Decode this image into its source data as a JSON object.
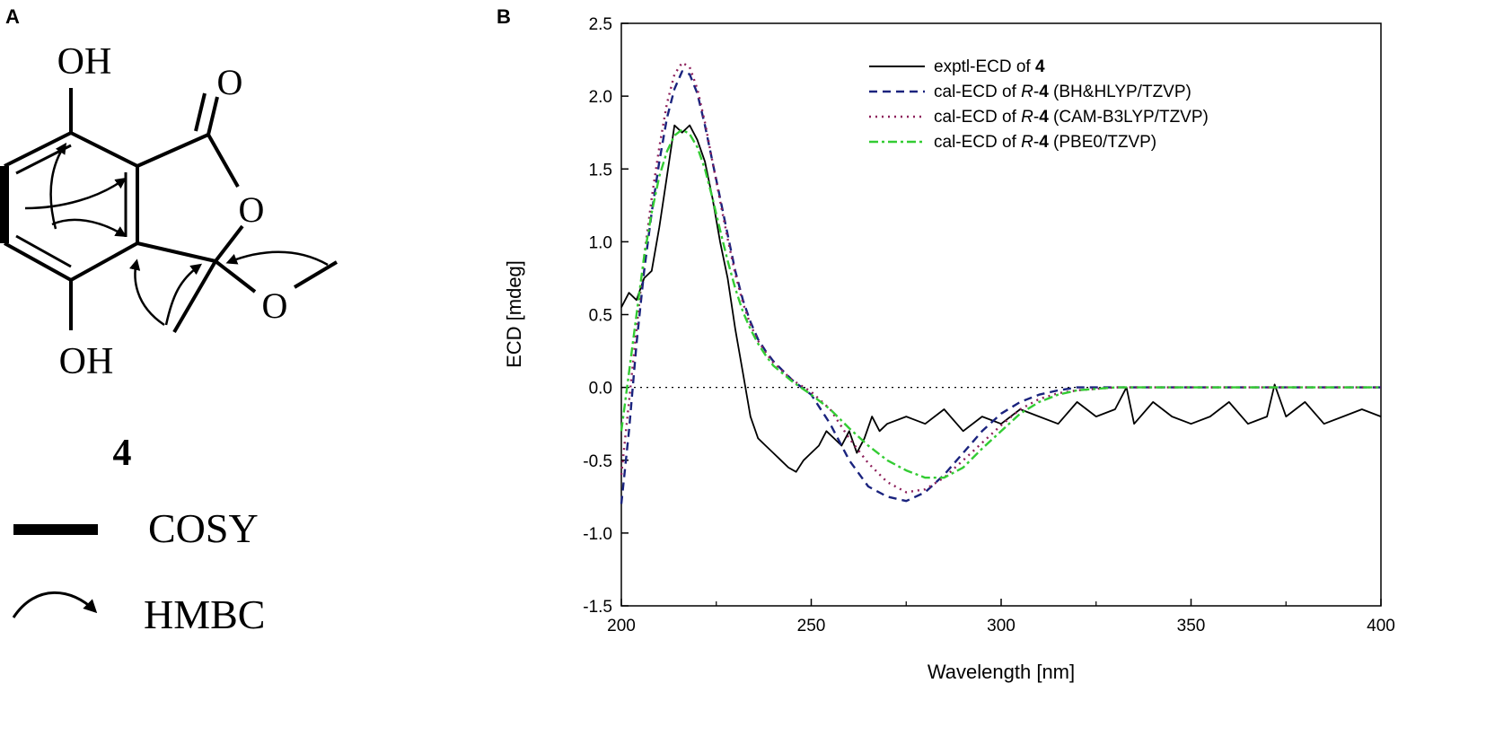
{
  "panels": {
    "a_label": "A",
    "b_label": "B"
  },
  "structure": {
    "oh_top": "OH",
    "oh_bottom": "OH",
    "o_carbonyl": "O",
    "o_ring": "O",
    "o_methoxy": "O",
    "compound_number": "4",
    "legend_cosy": "COSY",
    "legend_hmbc": "HMBC"
  },
  "chart_data": {
    "type": "line",
    "xlabel": "Wavelength [nm]",
    "ylabel": "ECD [mdeg]",
    "xlim": [
      200,
      400
    ],
    "ylim": [
      -1.5,
      2.5
    ],
    "xticks": [
      200,
      250,
      300,
      350,
      400
    ],
    "yticks": [
      -1.5,
      -1.0,
      -0.5,
      0.0,
      0.5,
      1.0,
      1.5,
      2.0,
      2.5
    ],
    "xtick_labels": [
      "200",
      "250",
      "300",
      "350",
      "400"
    ],
    "ytick_labels": [
      "-1.5",
      "-1.0",
      "-0.5",
      "0.0",
      "0.5",
      "1.0",
      "1.5",
      "2.0",
      "2.5"
    ],
    "zero_line": true,
    "legend_position": "top-right",
    "series": [
      {
        "name": "exptl-ECD of 4",
        "legend_prefix": "exptl-ECD of ",
        "legend_italic": "",
        "legend_bold": "4",
        "legend_suffix": "",
        "color": "#000000",
        "dash": "solid",
        "x": [
          200,
          202,
          204,
          206,
          208,
          210,
          212,
          214,
          216,
          218,
          220,
          222,
          224,
          226,
          228,
          230,
          232,
          234,
          236,
          238,
          240,
          242,
          244,
          246,
          248,
          250,
          252,
          254,
          256,
          258,
          260,
          262,
          264,
          266,
          268,
          270,
          275,
          280,
          285,
          290,
          295,
          300,
          305,
          310,
          315,
          320,
          325,
          330,
          333,
          335,
          340,
          345,
          350,
          355,
          360,
          365,
          370,
          372,
          375,
          380,
          385,
          390,
          395,
          400
        ],
        "y": [
          0.55,
          0.65,
          0.6,
          0.75,
          0.8,
          1.1,
          1.45,
          1.8,
          1.75,
          1.8,
          1.7,
          1.55,
          1.3,
          1.0,
          0.75,
          0.4,
          0.1,
          -0.2,
          -0.35,
          -0.4,
          -0.45,
          -0.5,
          -0.55,
          -0.58,
          -0.5,
          -0.45,
          -0.4,
          -0.3,
          -0.35,
          -0.4,
          -0.3,
          -0.45,
          -0.35,
          -0.2,
          -0.3,
          -0.25,
          -0.2,
          -0.25,
          -0.15,
          -0.3,
          -0.2,
          -0.25,
          -0.15,
          -0.2,
          -0.25,
          -0.1,
          -0.2,
          -0.15,
          0.0,
          -0.25,
          -0.1,
          -0.2,
          -0.25,
          -0.2,
          -0.1,
          -0.25,
          -0.2,
          0.02,
          -0.2,
          -0.1,
          -0.25,
          -0.2,
          -0.15,
          -0.2
        ]
      },
      {
        "name": "cal-ECD of R-4 (BH&HLYP/TZVP)",
        "legend_prefix": "cal-ECD of ",
        "legend_italic": "R",
        "legend_bold": "4",
        "legend_suffix": " (BH&HLYP/TZVP)",
        "color": "#1a237e",
        "dash": "9,6",
        "x": [
          200,
          202,
          204,
          206,
          208,
          210,
          212,
          214,
          216,
          218,
          220,
          222,
          224,
          226,
          228,
          230,
          232,
          234,
          236,
          238,
          240,
          245,
          250,
          255,
          260,
          265,
          270,
          275,
          280,
          285,
          290,
          295,
          300,
          305,
          310,
          315,
          320,
          330,
          340,
          350,
          360,
          370,
          380,
          390,
          400
        ],
        "y": [
          -0.8,
          -0.3,
          0.3,
          0.8,
          1.2,
          1.55,
          1.85,
          2.05,
          2.17,
          2.15,
          2.02,
          1.8,
          1.55,
          1.3,
          1.05,
          0.8,
          0.6,
          0.45,
          0.33,
          0.25,
          0.18,
          0.05,
          -0.05,
          -0.25,
          -0.5,
          -0.68,
          -0.75,
          -0.78,
          -0.72,
          -0.6,
          -0.45,
          -0.3,
          -0.18,
          -0.1,
          -0.05,
          -0.02,
          0.0,
          0.0,
          0.0,
          0.0,
          0.0,
          0.0,
          0.0,
          0.0,
          0.0
        ]
      },
      {
        "name": "cal-ECD of R-4 (CAM-B3LYP/TZVP)",
        "legend_prefix": "cal-ECD of ",
        "legend_italic": "R",
        "legend_bold": "4",
        "legend_suffix": " (CAM-B3LYP/TZVP)",
        "color": "#8d1f5a",
        "dash": "2,5",
        "x": [
          200,
          202,
          204,
          206,
          208,
          210,
          212,
          214,
          216,
          218,
          220,
          222,
          224,
          226,
          228,
          230,
          232,
          234,
          236,
          238,
          240,
          245,
          250,
          255,
          260,
          265,
          270,
          275,
          280,
          285,
          290,
          295,
          300,
          305,
          310,
          315,
          320,
          330,
          340,
          350,
          360,
          370,
          380,
          390,
          400
        ],
        "y": [
          -0.6,
          -0.1,
          0.4,
          0.9,
          1.3,
          1.65,
          1.95,
          2.15,
          2.23,
          2.2,
          2.05,
          1.82,
          1.55,
          1.28,
          1.02,
          0.78,
          0.58,
          0.43,
          0.32,
          0.24,
          0.17,
          0.05,
          -0.03,
          -0.15,
          -0.35,
          -0.52,
          -0.65,
          -0.72,
          -0.7,
          -0.62,
          -0.5,
          -0.38,
          -0.26,
          -0.15,
          -0.08,
          -0.04,
          -0.02,
          0.0,
          0.0,
          0.0,
          0.0,
          0.0,
          0.0,
          0.0,
          0.0
        ]
      },
      {
        "name": "cal-ECD of R-4 (PBE0/TZVP)",
        "legend_prefix": "cal-ECD of ",
        "legend_italic": "R",
        "legend_bold": "4",
        "legend_suffix": " (PBE0/TZVP)",
        "color": "#33cc33",
        "dash": "10,4,3,4",
        "x": [
          200,
          202,
          204,
          206,
          208,
          210,
          212,
          214,
          216,
          218,
          220,
          222,
          224,
          226,
          228,
          230,
          232,
          234,
          236,
          238,
          240,
          245,
          250,
          255,
          260,
          265,
          270,
          275,
          280,
          285,
          290,
          295,
          300,
          305,
          310,
          315,
          320,
          330,
          340,
          350,
          360,
          370,
          380,
          390,
          400
        ],
        "y": [
          -0.3,
          0.1,
          0.5,
          0.9,
          1.2,
          1.45,
          1.62,
          1.73,
          1.77,
          1.74,
          1.65,
          1.5,
          1.3,
          1.08,
          0.87,
          0.68,
          0.52,
          0.4,
          0.3,
          0.22,
          0.15,
          0.04,
          -0.05,
          -0.15,
          -0.28,
          -0.4,
          -0.5,
          -0.57,
          -0.62,
          -0.62,
          -0.55,
          -0.42,
          -0.3,
          -0.18,
          -0.1,
          -0.05,
          -0.02,
          0.0,
          0.0,
          0.0,
          0.0,
          0.0,
          0.0,
          0.0,
          0.0
        ]
      }
    ]
  }
}
